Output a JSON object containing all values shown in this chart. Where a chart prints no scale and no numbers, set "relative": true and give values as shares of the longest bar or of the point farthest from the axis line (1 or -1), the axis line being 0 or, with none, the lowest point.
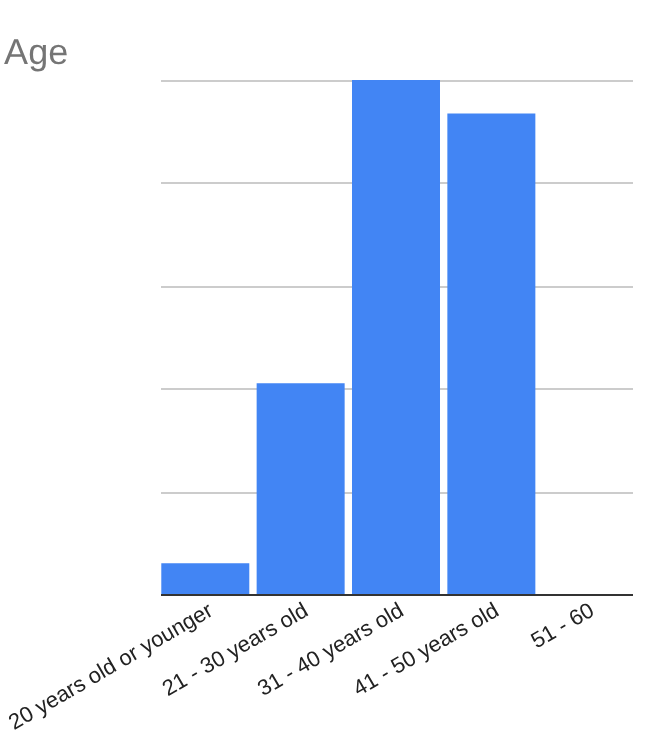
{
  "chart_data": {
    "type": "bar",
    "title": "Age",
    "categories": [
      "20 years old or younger",
      "21 - 30 years old",
      "31 - 40 years old",
      "41 - 50 years old",
      "51 - 60"
    ],
    "values": [
      0.06,
      0.41,
      1,
      0.935,
      null
    ],
    "color": "#4285f4",
    "relative": true,
    "grid": "y"
  }
}
